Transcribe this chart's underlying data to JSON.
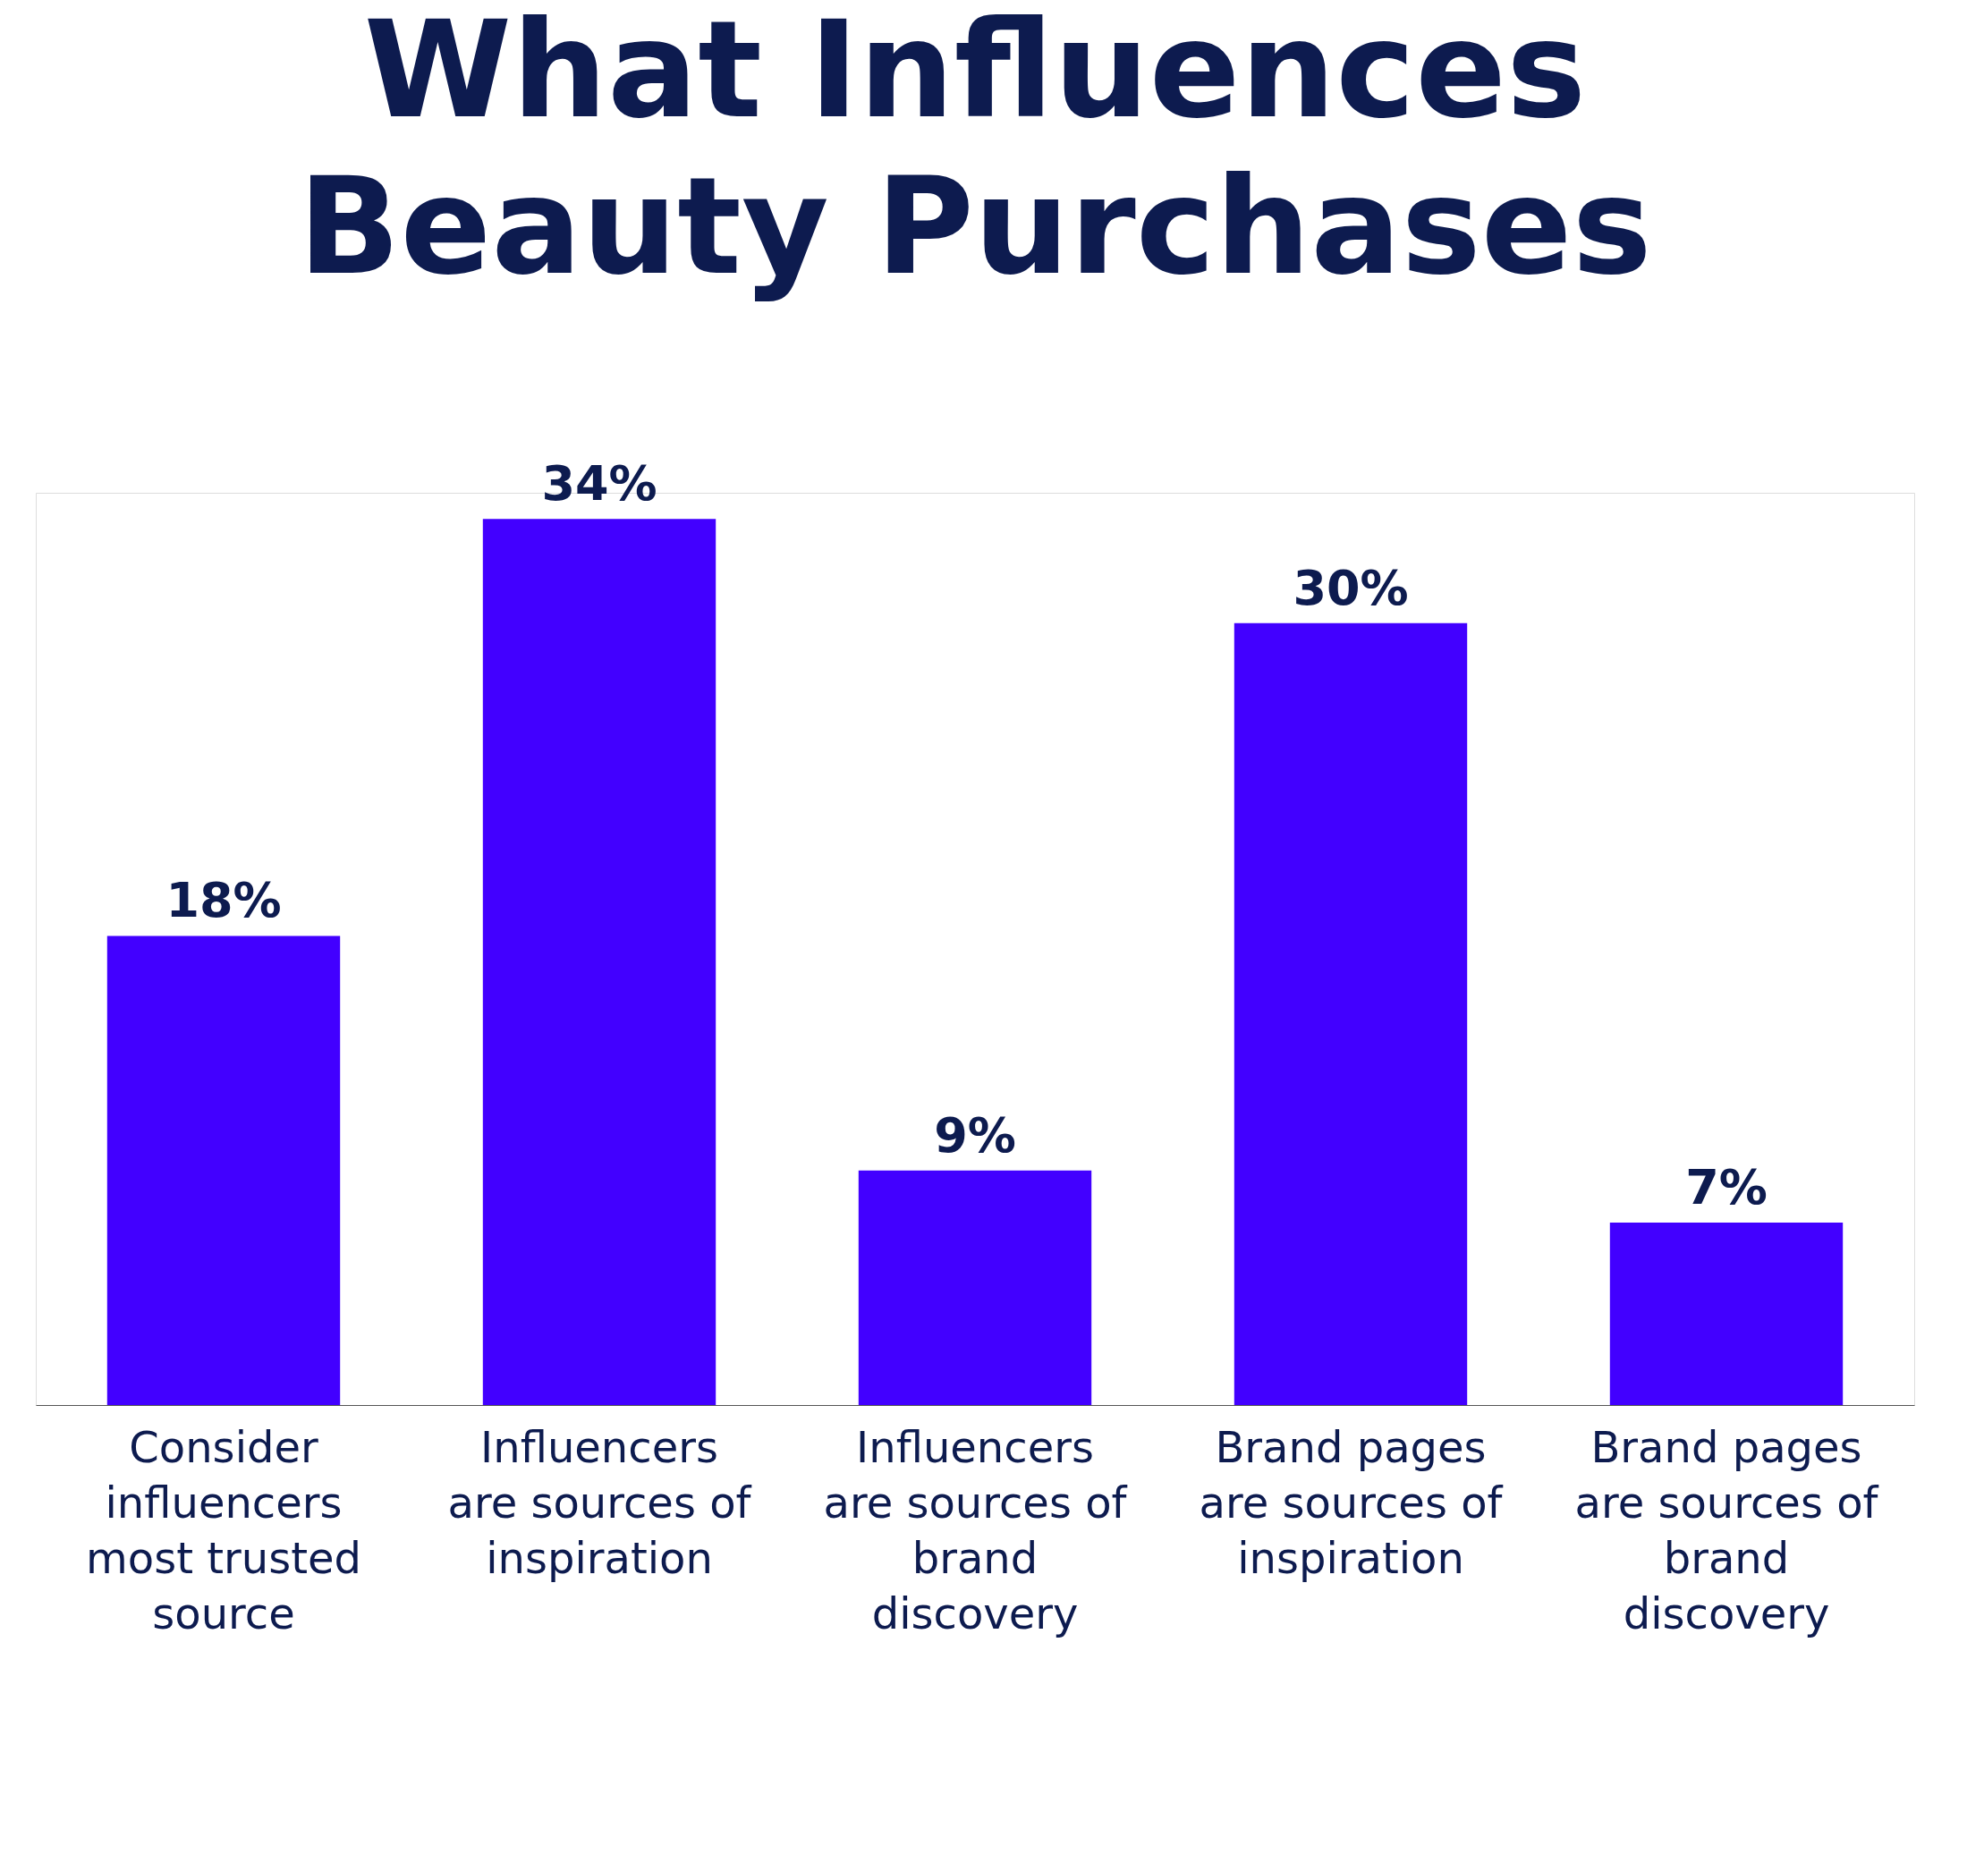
{
  "chart_data": {
    "type": "bar",
    "title": "What Influences Beauty Purchases",
    "categories": [
      "Consider influencers most trusted source",
      "Influencers are sources of inspiration",
      "Influencers are sources of brand discovery",
      "Brand pages are sources of inspiration",
      "Brand pages are sources of brand discovery"
    ],
    "values": [
      18,
      34,
      9,
      30,
      7
    ],
    "value_labels": [
      "18%",
      "34%",
      "9%",
      "30%",
      "7%"
    ],
    "color": "#4200ff"
  }
}
